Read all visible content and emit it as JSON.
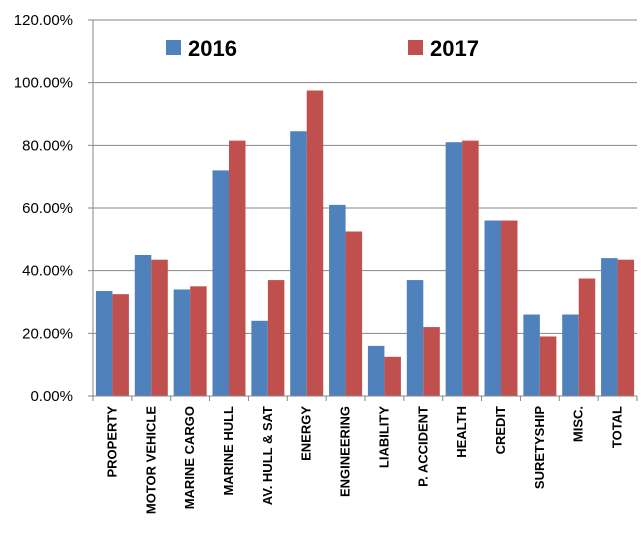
{
  "chart_data": {
    "type": "bar",
    "categories": [
      "PROPERTY",
      "MOTOR VEHICLE",
      "MARINE CARGO",
      "MARINE HULL",
      "AV. HULL & SAT",
      "ENERGY",
      "ENGINEERING",
      "LIABILITY",
      "P. ACCIDENT",
      "HEALTH",
      "CREDIT",
      "SURETYSHIP",
      "MISC.",
      "TOTAL"
    ],
    "series": [
      {
        "name": "2016",
        "color": "#4f81bd",
        "values": [
          33.5,
          45.0,
          34.0,
          72.0,
          24.0,
          84.5,
          61.0,
          16.0,
          37.0,
          81.0,
          56.0,
          26.0,
          26.0,
          44.0
        ]
      },
      {
        "name": "2017",
        "color": "#c0504d",
        "values": [
          32.5,
          43.5,
          35.0,
          81.5,
          37.0,
          97.5,
          52.5,
          12.5,
          22.0,
          81.5,
          56.0,
          19.0,
          37.5,
          43.5
        ]
      }
    ],
    "ylim": [
      0,
      120
    ],
    "ytick_step": 20,
    "ytick_labels": [
      "0.00%",
      "20.00%",
      "40.00%",
      "60.00%",
      "80.00%",
      "100.00%",
      "120.00%"
    ],
    "grid": true,
    "legend_placement": "top",
    "title": "",
    "xlabel": "",
    "ylabel": ""
  }
}
